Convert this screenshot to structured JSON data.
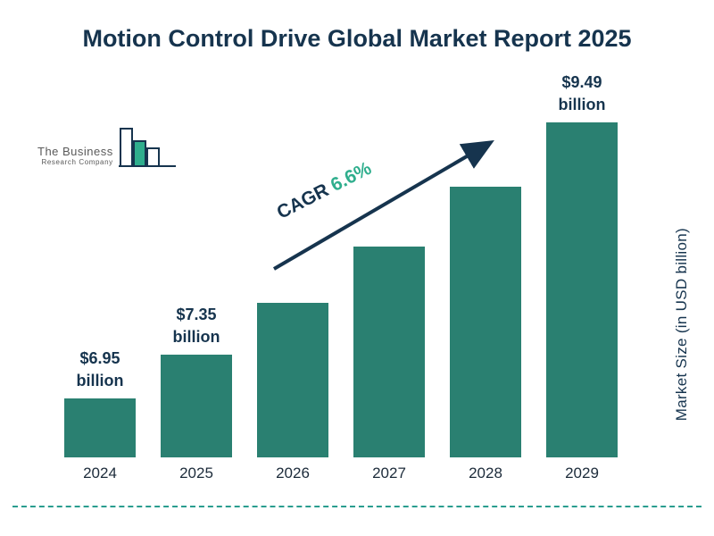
{
  "title": "Motion Control Drive Global Market Report 2025",
  "logo": {
    "line1": "The Business",
    "line2": "Research Company"
  },
  "cagr": {
    "label": "CAGR ",
    "value": "6.6%"
  },
  "y_axis_label": "Market Size (in USD billion)",
  "colors": {
    "bar": "#2a8071",
    "dark_navy": "#16344e",
    "cagr_green": "#2fae8d",
    "dashed_line": "#2a9d8f"
  },
  "chart_data": {
    "type": "bar",
    "title": "Motion Control Drive Global Market Report 2025",
    "categories": [
      "2024",
      "2025",
      "2026",
      "2027",
      "2028",
      "2029"
    ],
    "values": [
      6.95,
      7.35,
      7.83,
      8.35,
      8.9,
      9.49
    ],
    "value_labels": [
      {
        "amount": "$6.95",
        "unit": "billion"
      },
      {
        "amount": "$7.35",
        "unit": "billion"
      },
      null,
      null,
      null,
      {
        "amount": "$9.49",
        "unit": "billion"
      }
    ],
    "xlabel": "",
    "ylabel": "Market Size (in USD billion)",
    "ylim": [
      0,
      10
    ],
    "grid": false,
    "legend": false,
    "annotation": "CAGR 6.6%"
  }
}
